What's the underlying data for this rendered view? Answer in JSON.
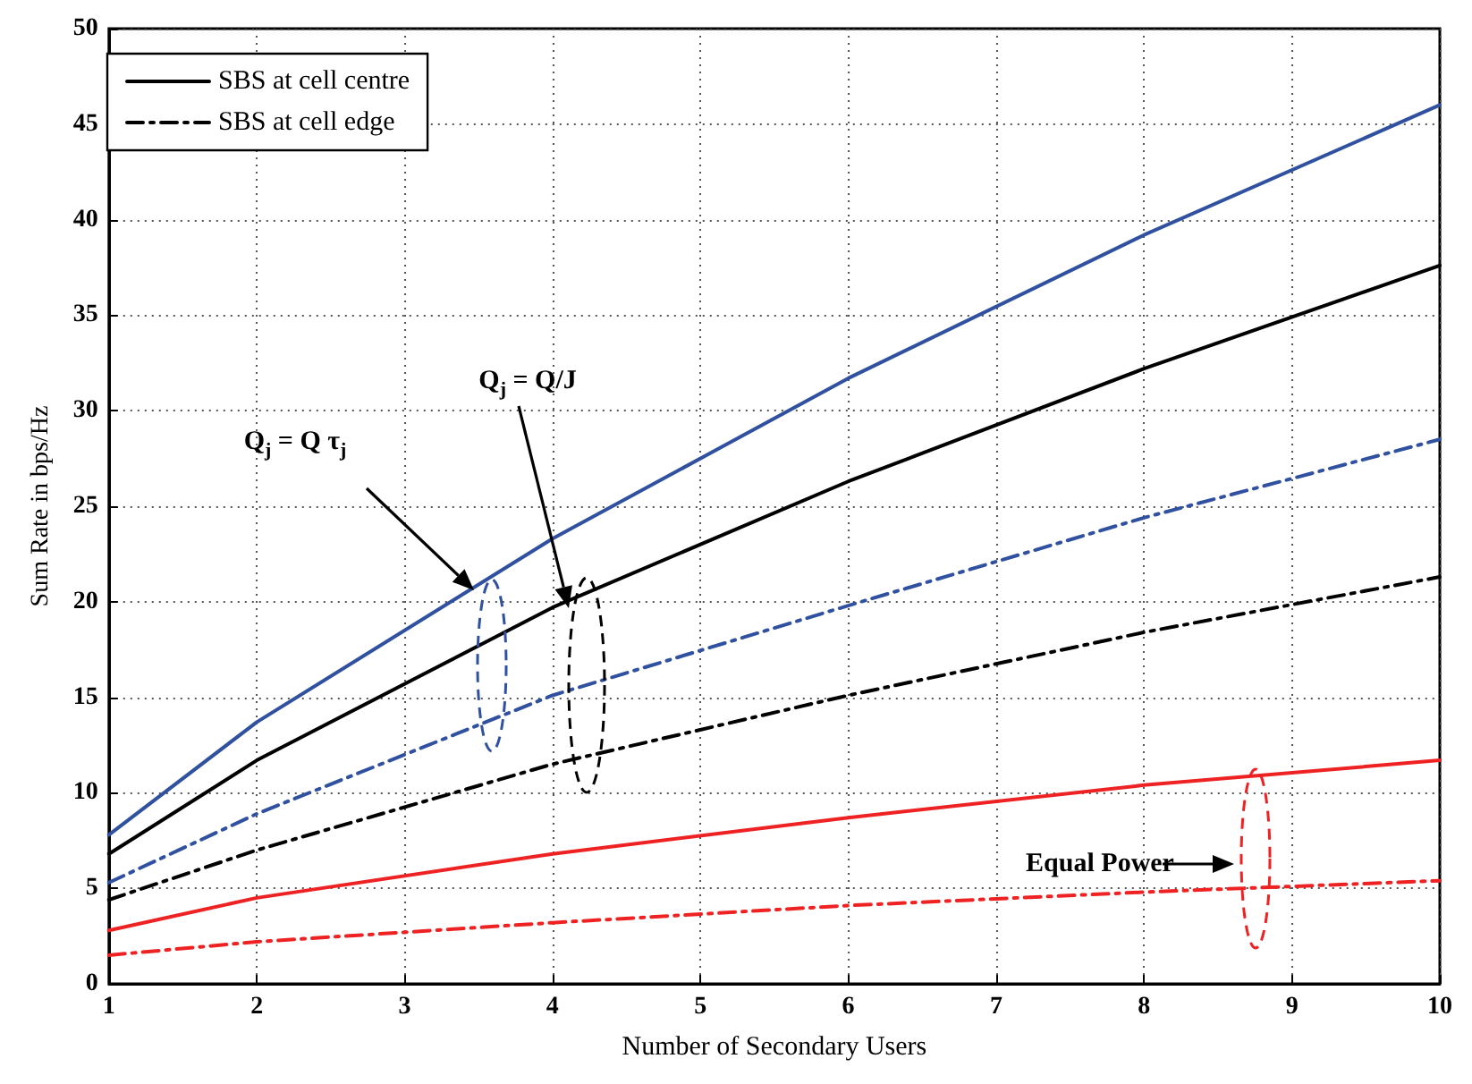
{
  "chart_data": {
    "type": "line",
    "xlabel": "Number of Secondary Users",
    "ylabel": "Sum Rate in bps/Hz",
    "x": [
      1,
      2,
      4,
      6,
      8,
      10
    ],
    "series": [
      {
        "color": "#3050a0",
        "line_style": "solid",
        "values": [
          7.8,
          13.7,
          23.3,
          31.7,
          39.2,
          46.0
        ]
      },
      {
        "name": "SBS at cell centre",
        "color": "#000000",
        "line_style": "solid",
        "values": [
          6.8,
          11.7,
          19.7,
          26.3,
          32.2,
          37.6
        ]
      },
      {
        "color": "#3050a0",
        "line_style": "dashed",
        "values": [
          5.3,
          8.9,
          15.1,
          19.8,
          24.4,
          28.5
        ]
      },
      {
        "name": "SBS at cell edge",
        "color": "#000000",
        "line_style": "dashed",
        "values": [
          4.4,
          7.0,
          11.5,
          15.1,
          18.4,
          21.3
        ]
      },
      {
        "color": "#ee2222",
        "line_style": "solid",
        "values": [
          2.8,
          4.5,
          6.8,
          8.7,
          10.4,
          11.7
        ]
      },
      {
        "color": "#ee2222",
        "line_style": "dashed",
        "values": [
          1.5,
          2.2,
          3.2,
          4.1,
          4.8,
          5.4
        ]
      }
    ],
    "annotations": [
      "Q$_{j}$ = Q τ$_{j}$",
      "Q$_{j}$ = Q/J",
      "Equal Power"
    ],
    "xlim": [
      1,
      10
    ],
    "xticks": [
      1,
      2,
      3,
      4,
      5,
      6,
      7,
      8,
      9,
      10
    ],
    "ylim": [
      0,
      50
    ],
    "yticks": [
      0,
      5,
      10,
      15,
      20,
      25,
      30,
      35,
      40,
      45,
      50
    ],
    "grid": true,
    "legend": "top left",
    "marker": "none"
  }
}
